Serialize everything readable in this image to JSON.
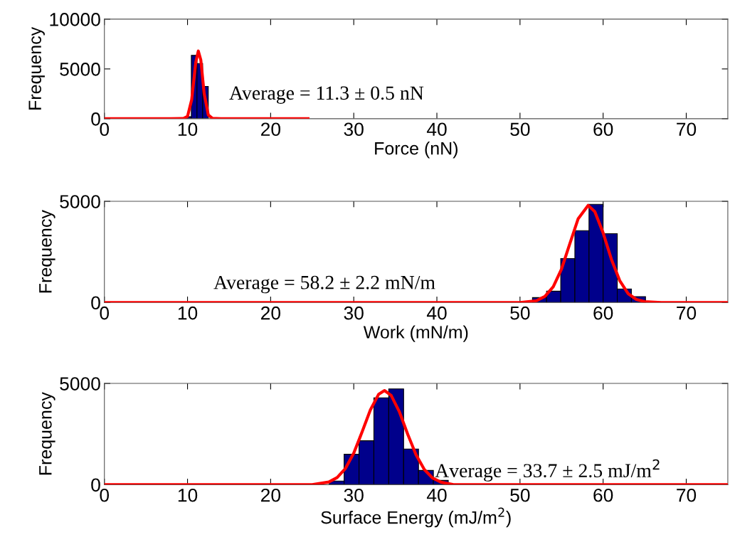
{
  "chart_data": [
    {
      "type": "histogram",
      "xlabel": "Force (nN)",
      "ylabel": "Frequency",
      "xlim": [
        0,
        75
      ],
      "xticks": [
        0,
        10,
        20,
        30,
        40,
        50,
        60,
        70
      ],
      "ylim": [
        0,
        10000
      ],
      "yticks": [
        0,
        5000,
        10000
      ],
      "grid": false,
      "annotations": [
        "Average = 11.3 ± 0.5 nN"
      ],
      "series": [
        {
          "color": "#00008b",
          "bins": [
            9.78,
            10.46,
            11.14,
            11.82,
            12.5
          ],
          "values": [
            200,
            6360,
            5550,
            3240
          ]
        },
        {
          "type": "line",
          "color": "#ff0000",
          "x": [
            0,
            8,
            9.5,
            10,
            10.5,
            11,
            11.3,
            11.6,
            12,
            12.5,
            13,
            14,
            24.5
          ],
          "values": [
            0,
            0,
            20,
            230,
            1900,
            5700,
            6800,
            5900,
            2550,
            380,
            30,
            0,
            0
          ]
        }
      ]
    },
    {
      "type": "histogram",
      "xlabel": "Work (mN/m)",
      "ylabel": "Frequency",
      "xlim": [
        0,
        75
      ],
      "xticks": [
        0,
        10,
        20,
        30,
        40,
        50,
        60,
        70
      ],
      "ylim": [
        0,
        5000
      ],
      "yticks": [
        0,
        5000
      ],
      "grid": false,
      "annotations": [
        "Average = 58.2 ± 2.2 mN/m"
      ],
      "series": [
        {
          "color": "#00008b",
          "bins": [
            51.5,
            53.2,
            54.9,
            56.6,
            58.3,
            60.0,
            61.7,
            63.4,
            65.1
          ],
          "values": [
            240,
            560,
            2170,
            3550,
            4850,
            3400,
            670,
            290
          ]
        },
        {
          "type": "line",
          "color": "#ff0000",
          "x": [
            0,
            45,
            50,
            52,
            53,
            54,
            55,
            56,
            57,
            58.2,
            59,
            60,
            61,
            62,
            63,
            64,
            65,
            67,
            75
          ],
          "values": [
            0,
            0,
            0,
            90,
            300,
            780,
            1660,
            2910,
            4140,
            4800,
            4490,
            3440,
            2130,
            1080,
            440,
            150,
            40,
            0,
            0
          ]
        }
      ]
    },
    {
      "type": "histogram",
      "xlabel": "Surface Energy (mJ/m$^{2}$)",
      "ylabel": "Frequency",
      "xlim": [
        0,
        75
      ],
      "xticks": [
        0,
        10,
        20,
        30,
        40,
        50,
        60,
        70
      ],
      "ylim": [
        0,
        5000
      ],
      "yticks": [
        0,
        5000
      ],
      "grid": false,
      "annotations": [
        "Average = 33.7 ± 2.5 mJ/m$^{2}$"
      ],
      "series": [
        {
          "color": "#00008b",
          "bins": [
            27.05,
            28.84,
            30.63,
            32.42,
            34.21,
            36.0,
            37.79,
            39.58,
            41.37
          ],
          "values": [
            180,
            1500,
            2170,
            4290,
            4730,
            1760,
            700,
            210
          ]
        },
        {
          "type": "line",
          "color": "#ff0000",
          "x": [
            0,
            25,
            27,
            28,
            29,
            30,
            31,
            32,
            33,
            33.7,
            34.5,
            35.5,
            36.5,
            37.5,
            38.5,
            39.5,
            40.5,
            42,
            75
          ],
          "values": [
            0,
            0,
            130,
            350,
            800,
            1560,
            2600,
            3690,
            4470,
            4650,
            4410,
            3590,
            2480,
            1470,
            740,
            320,
            120,
            0,
            0
          ]
        }
      ]
    }
  ]
}
